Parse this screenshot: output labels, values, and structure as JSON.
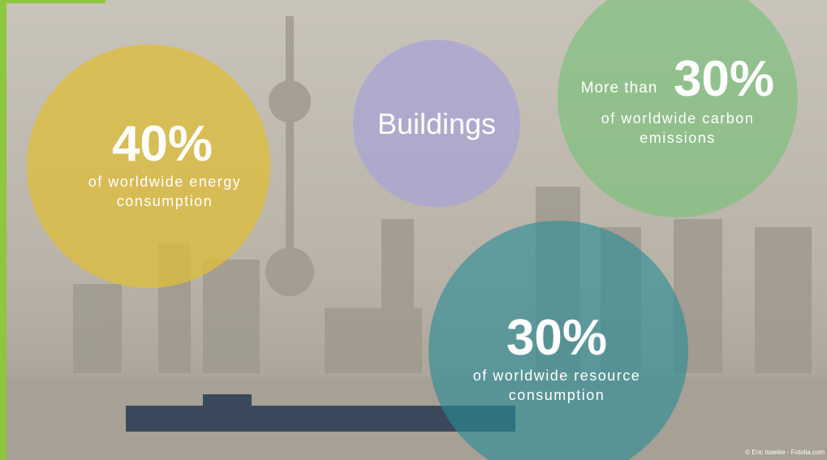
{
  "circles": [
    {
      "stat": "40%",
      "lines": [
        "of worldwide energy",
        "consumption"
      ]
    },
    {
      "lines": [
        "Buildings"
      ]
    },
    {
      "prefix": "More than",
      "stat": "30%",
      "lines": [
        "of  worldwide carbon",
        "emissions"
      ]
    },
    {
      "stat": "30%",
      "lines": [
        "of worldwide resource",
        "consumption"
      ]
    }
  ],
  "credit": "© Eric Isselée - Fotolia.com"
}
